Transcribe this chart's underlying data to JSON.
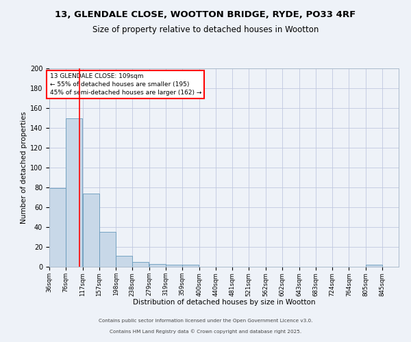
{
  "title_line1": "13, GLENDALE CLOSE, WOOTTON BRIDGE, RYDE, PO33 4RF",
  "title_line2": "Size of property relative to detached houses in Wootton",
  "xlabel": "Distribution of detached houses by size in Wootton",
  "ylabel": "Number of detached properties",
  "bins": [
    36,
    76,
    117,
    157,
    198,
    238,
    279,
    319,
    359,
    400,
    440,
    481,
    521,
    562,
    602,
    643,
    683,
    724,
    764,
    805,
    845
  ],
  "bar_heights": [
    79,
    150,
    74,
    35,
    11,
    5,
    3,
    2,
    2,
    0,
    0,
    0,
    0,
    0,
    0,
    0,
    0,
    0,
    0,
    2,
    0
  ],
  "bar_color": "#c8d8e8",
  "bar_edge_color": "#6699bb",
  "grid_color": "#c0c8e0",
  "background_color": "#eef2f8",
  "red_line_x": 109,
  "annotation_text": "13 GLENDALE CLOSE: 109sqm\n← 55% of detached houses are smaller (195)\n45% of semi-detached houses are larger (162) →",
  "annotation_box_color": "white",
  "annotation_box_edge": "red",
  "ylim": [
    0,
    200
  ],
  "yticks": [
    0,
    20,
    40,
    60,
    80,
    100,
    120,
    140,
    160,
    180,
    200
  ],
  "footer_line1": "Contains HM Land Registry data © Crown copyright and database right 2025.",
  "footer_line2": "Contains public sector information licensed under the Open Government Licence v3.0."
}
